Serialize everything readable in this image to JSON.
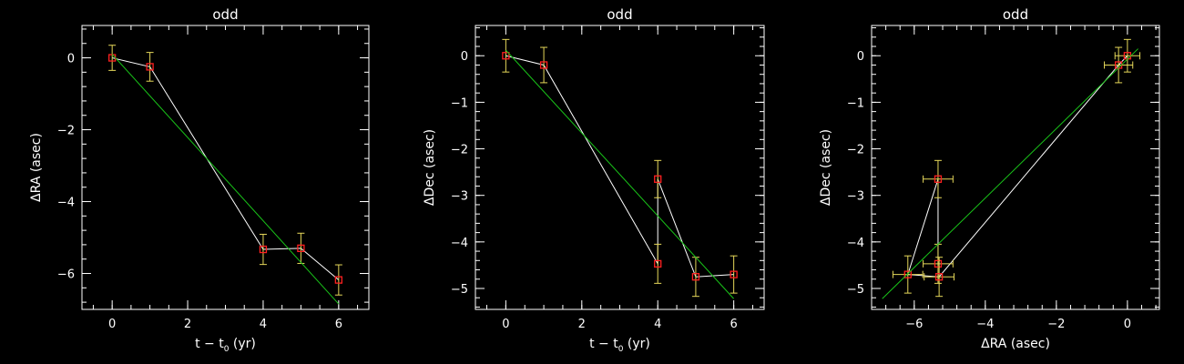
{
  "chart_data": [
    {
      "type": "line",
      "title": "odd",
      "xlabel": "t − t",
      "xlabel_sub": "0",
      "xlabel_unit": " (yr)",
      "ylabel": "ΔRA (asec)",
      "xlim": [
        -0.8,
        6.8
      ],
      "ylim": [
        -7.0,
        0.9
      ],
      "xticks": [
        0,
        2,
        4,
        6
      ],
      "xtick_labels": [
        "0",
        "2",
        "4",
        "6"
      ],
      "yticks": [
        0,
        -2,
        -4,
        -6
      ],
      "ytick_labels": [
        "0",
        "−2",
        "−4",
        "−6"
      ],
      "x_minor_step": 0.5,
      "y_minor_step": 0.4,
      "series": [
        {
          "kind": "data",
          "color": "#ffffff",
          "marker_color": "#ff2020",
          "errbar_color": "#e6d85a",
          "x": [
            0,
            1,
            4,
            5,
            6
          ],
          "y": [
            0.0,
            -0.25,
            -5.33,
            -5.3,
            -6.18
          ],
          "yerr": [
            0.35,
            0.4,
            0.42,
            0.42,
            0.42
          ]
        },
        {
          "kind": "fit",
          "color": "#19c419",
          "x": [
            0,
            6
          ],
          "y": [
            0.1,
            -6.85
          ]
        }
      ]
    },
    {
      "type": "line",
      "title": "odd",
      "xlabel": "t − t",
      "xlabel_sub": "0",
      "xlabel_unit": " (yr)",
      "ylabel": "ΔDec (asec)",
      "xlim": [
        -0.8,
        6.8
      ],
      "ylim": [
        -5.45,
        0.65
      ],
      "xticks": [
        0,
        2,
        4,
        6
      ],
      "xtick_labels": [
        "0",
        "2",
        "4",
        "6"
      ],
      "yticks": [
        0,
        -1,
        -2,
        -3,
        -4,
        -5
      ],
      "ytick_labels": [
        "0",
        "−1",
        "−2",
        "−3",
        "−4",
        "−5"
      ],
      "x_minor_step": 0.5,
      "y_minor_step": 0.2,
      "series": [
        {
          "kind": "data",
          "color": "#ffffff",
          "marker_color": "#ff2020",
          "errbar_color": "#e6d85a",
          "x": [
            0,
            1,
            4,
            4,
            5,
            6
          ],
          "y": [
            0.0,
            -0.2,
            -4.47,
            -2.65,
            -4.75,
            -4.7
          ],
          "yerr": [
            0.35,
            0.38,
            0.42,
            0.4,
            0.42,
            0.4
          ]
        },
        {
          "kind": "fit",
          "color": "#19c419",
          "x": [
            0,
            6
          ],
          "y": [
            0.12,
            -5.22
          ]
        }
      ]
    },
    {
      "type": "scatter",
      "title": "odd",
      "xlabel": "ΔRA (asec)",
      "xlabel_sub": "",
      "xlabel_unit": "",
      "ylabel": "ΔDec (asec)",
      "xlim": [
        -7.2,
        0.9
      ],
      "ylim": [
        -5.45,
        0.65
      ],
      "xticks": [
        -6,
        -4,
        -2,
        0
      ],
      "xtick_labels": [
        "−6",
        "−4",
        "−2",
        "0"
      ],
      "yticks": [
        0,
        -1,
        -2,
        -3,
        -4,
        -5
      ],
      "ytick_labels": [
        "0",
        "−1",
        "−2",
        "−3",
        "−4",
        "−5"
      ],
      "x_minor_step": 0.4,
      "y_minor_step": 0.2,
      "series": [
        {
          "kind": "data",
          "color": "#ffffff",
          "marker_color": "#ff2020",
          "errbar_color": "#e6d85a",
          "x": [
            0.0,
            -0.25,
            -5.33,
            -5.33,
            -5.3,
            -6.18
          ],
          "y": [
            0.0,
            -0.2,
            -4.47,
            -2.65,
            -4.75,
            -4.7
          ],
          "xerr": [
            0.35,
            0.4,
            0.42,
            0.42,
            0.42,
            0.42
          ],
          "yerr": [
            0.35,
            0.38,
            0.42,
            0.4,
            0.42,
            0.4
          ],
          "order": [
            0,
            1,
            4,
            5,
            3,
            2
          ]
        },
        {
          "kind": "fit",
          "color": "#19c419",
          "x": [
            -6.9,
            0.3
          ],
          "y": [
            -5.22,
            0.15
          ]
        }
      ]
    }
  ]
}
